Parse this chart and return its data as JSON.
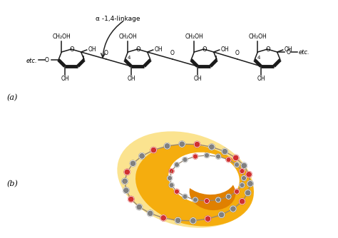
{
  "bg_color": "#ffffff",
  "label_a": "(a)",
  "label_b": "(b)",
  "linkage_label": "α -1,4-linkage",
  "etc": "etc.",
  "ch2oh": "CH₂OH",
  "oh": "OH",
  "o_atom": "O",
  "orange_light": "#FDEAA0",
  "orange_mid": "#F5A800",
  "orange_dark": "#D87000",
  "orange_core": "#E88000",
  "red_dot": "#D03030",
  "grey_dot": "#808080",
  "grey_dot_light": "#A0A090",
  "bond_color": "#9A8870",
  "ring_color": "#1a1a1a",
  "arrow_color": "#222222",
  "figsize": [
    4.74,
    3.34
  ],
  "dpi": 100
}
